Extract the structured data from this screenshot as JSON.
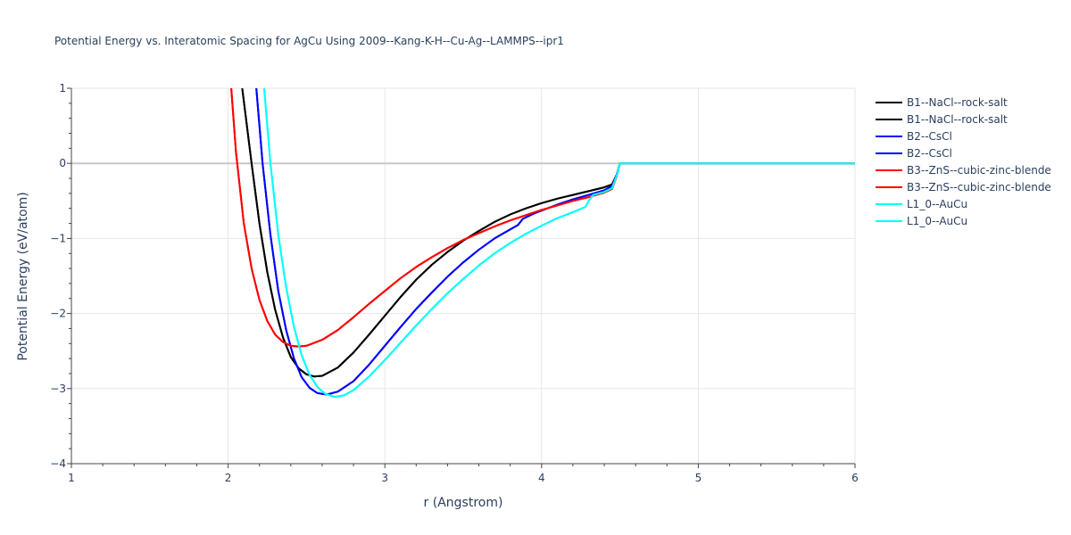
{
  "chart_data": {
    "type": "line",
    "title": "Potential Energy vs. Interatomic Spacing for AgCu Using 2009--Kang-K-H--Cu-Ag--LAMMPS--ipr1",
    "xlabel": "r (Angstrom)",
    "ylabel": "Potential Energy (eV/atom)",
    "xlim": [
      1,
      6
    ],
    "ylim": [
      -4,
      1
    ],
    "x_ticks": [
      "1",
      "2",
      "3",
      "4",
      "5",
      "6"
    ],
    "y_ticks": [
      "1",
      "0",
      "−1",
      "−2",
      "−3",
      "−4"
    ],
    "grid": true,
    "legend_position": "top-right",
    "series": [
      {
        "name": "B1--NaCl--rock-salt",
        "color": "#000000",
        "points": [
          [
            2.09,
            1.0
          ],
          [
            2.15,
            0.0
          ],
          [
            2.2,
            -0.8
          ],
          [
            2.25,
            -1.45
          ],
          [
            2.3,
            -1.95
          ],
          [
            2.35,
            -2.32
          ],
          [
            2.4,
            -2.58
          ],
          [
            2.45,
            -2.73
          ],
          [
            2.5,
            -2.81
          ],
          [
            2.55,
            -2.84
          ],
          [
            2.6,
            -2.83
          ],
          [
            2.7,
            -2.72
          ],
          [
            2.8,
            -2.52
          ],
          [
            2.9,
            -2.28
          ],
          [
            3.0,
            -2.03
          ],
          [
            3.1,
            -1.78
          ],
          [
            3.2,
            -1.55
          ],
          [
            3.3,
            -1.35
          ],
          [
            3.4,
            -1.18
          ],
          [
            3.5,
            -1.03
          ],
          [
            3.6,
            -0.9
          ],
          [
            3.7,
            -0.78
          ],
          [
            3.8,
            -0.68
          ],
          [
            3.9,
            -0.6
          ],
          [
            4.0,
            -0.53
          ],
          [
            4.1,
            -0.47
          ],
          [
            4.2,
            -0.42
          ],
          [
            4.3,
            -0.37
          ],
          [
            4.4,
            -0.32
          ],
          [
            4.45,
            -0.28
          ],
          [
            4.48,
            -0.15
          ],
          [
            4.5,
            0.0
          ],
          [
            6.0,
            0.0
          ]
        ]
      },
      {
        "name": "B1--NaCl--rock-salt",
        "color": "#000000",
        "points": [
          [
            2.09,
            1.0
          ],
          [
            2.15,
            0.0
          ],
          [
            2.2,
            -0.8
          ],
          [
            2.25,
            -1.45
          ],
          [
            2.3,
            -1.95
          ],
          [
            2.35,
            -2.32
          ],
          [
            2.4,
            -2.58
          ],
          [
            2.45,
            -2.73
          ],
          [
            2.5,
            -2.81
          ],
          [
            2.55,
            -2.84
          ],
          [
            2.6,
            -2.83
          ],
          [
            2.7,
            -2.72
          ],
          [
            2.8,
            -2.52
          ],
          [
            2.9,
            -2.28
          ],
          [
            3.0,
            -2.03
          ],
          [
            3.1,
            -1.78
          ],
          [
            3.2,
            -1.55
          ],
          [
            3.3,
            -1.35
          ],
          [
            3.4,
            -1.18
          ],
          [
            3.5,
            -1.03
          ],
          [
            3.6,
            -0.9
          ],
          [
            3.7,
            -0.78
          ],
          [
            3.8,
            -0.68
          ],
          [
            3.9,
            -0.6
          ],
          [
            4.0,
            -0.53
          ],
          [
            4.1,
            -0.47
          ],
          [
            4.2,
            -0.42
          ],
          [
            4.3,
            -0.37
          ],
          [
            4.4,
            -0.32
          ],
          [
            4.45,
            -0.28
          ],
          [
            4.48,
            -0.15
          ],
          [
            4.5,
            0.0
          ],
          [
            6.0,
            0.0
          ]
        ]
      },
      {
        "name": "B2--CsCl",
        "color": "#0000ff",
        "points": [
          [
            2.18,
            1.0
          ],
          [
            2.22,
            0.0
          ],
          [
            2.27,
            -0.95
          ],
          [
            2.32,
            -1.7
          ],
          [
            2.37,
            -2.22
          ],
          [
            2.42,
            -2.6
          ],
          [
            2.47,
            -2.85
          ],
          [
            2.52,
            -2.99
          ],
          [
            2.57,
            -3.06
          ],
          [
            2.63,
            -3.08
          ],
          [
            2.7,
            -3.04
          ],
          [
            2.8,
            -2.9
          ],
          [
            2.9,
            -2.68
          ],
          [
            3.0,
            -2.43
          ],
          [
            3.1,
            -2.18
          ],
          [
            3.2,
            -1.94
          ],
          [
            3.3,
            -1.72
          ],
          [
            3.4,
            -1.51
          ],
          [
            3.5,
            -1.32
          ],
          [
            3.6,
            -1.15
          ],
          [
            3.7,
            -1.0
          ],
          [
            3.8,
            -0.88
          ],
          [
            3.85,
            -0.82
          ],
          [
            3.88,
            -0.74
          ],
          [
            3.95,
            -0.67
          ],
          [
            4.0,
            -0.63
          ],
          [
            4.1,
            -0.55
          ],
          [
            4.2,
            -0.48
          ],
          [
            4.3,
            -0.42
          ],
          [
            4.4,
            -0.36
          ],
          [
            4.45,
            -0.3
          ],
          [
            4.48,
            -0.15
          ],
          [
            4.5,
            0.0
          ],
          [
            6.0,
            0.0
          ]
        ]
      },
      {
        "name": "B2--CsCl",
        "color": "#0000ff",
        "points": [
          [
            2.18,
            1.0
          ],
          [
            2.22,
            0.0
          ],
          [
            2.27,
            -0.95
          ],
          [
            2.32,
            -1.7
          ],
          [
            2.37,
            -2.22
          ],
          [
            2.42,
            -2.6
          ],
          [
            2.47,
            -2.85
          ],
          [
            2.52,
            -2.99
          ],
          [
            2.57,
            -3.06
          ],
          [
            2.63,
            -3.08
          ],
          [
            2.7,
            -3.04
          ],
          [
            2.8,
            -2.9
          ],
          [
            2.9,
            -2.68
          ],
          [
            3.0,
            -2.43
          ],
          [
            3.1,
            -2.18
          ],
          [
            3.2,
            -1.94
          ],
          [
            3.3,
            -1.72
          ],
          [
            3.4,
            -1.51
          ],
          [
            3.5,
            -1.32
          ],
          [
            3.6,
            -1.15
          ],
          [
            3.7,
            -1.0
          ],
          [
            3.8,
            -0.88
          ],
          [
            3.85,
            -0.82
          ],
          [
            3.88,
            -0.74
          ],
          [
            3.95,
            -0.67
          ],
          [
            4.0,
            -0.63
          ],
          [
            4.1,
            -0.55
          ],
          [
            4.2,
            -0.48
          ],
          [
            4.3,
            -0.42
          ],
          [
            4.4,
            -0.36
          ],
          [
            4.45,
            -0.3
          ],
          [
            4.48,
            -0.15
          ],
          [
            4.5,
            0.0
          ],
          [
            6.0,
            0.0
          ]
        ]
      },
      {
        "name": "B3--ZnS--cubic-zinc-blende",
        "color": "#ff0000",
        "points": [
          [
            2.02,
            1.0
          ],
          [
            2.05,
            0.15
          ],
          [
            2.1,
            -0.8
          ],
          [
            2.15,
            -1.4
          ],
          [
            2.2,
            -1.82
          ],
          [
            2.25,
            -2.1
          ],
          [
            2.3,
            -2.28
          ],
          [
            2.35,
            -2.38
          ],
          [
            2.4,
            -2.43
          ],
          [
            2.45,
            -2.44
          ],
          [
            2.5,
            -2.43
          ],
          [
            2.6,
            -2.35
          ],
          [
            2.7,
            -2.22
          ],
          [
            2.8,
            -2.05
          ],
          [
            2.9,
            -1.87
          ],
          [
            3.0,
            -1.7
          ],
          [
            3.1,
            -1.53
          ],
          [
            3.2,
            -1.38
          ],
          [
            3.3,
            -1.25
          ],
          [
            3.4,
            -1.13
          ],
          [
            3.5,
            -1.02
          ],
          [
            3.6,
            -0.93
          ],
          [
            3.7,
            -0.84
          ],
          [
            3.8,
            -0.76
          ],
          [
            3.9,
            -0.69
          ],
          [
            4.0,
            -0.62
          ],
          [
            4.1,
            -0.56
          ],
          [
            4.2,
            -0.5
          ],
          [
            4.3,
            -0.45
          ],
          [
            4.4,
            -0.39
          ],
          [
            4.45,
            -0.34
          ],
          [
            4.48,
            -0.17
          ],
          [
            4.5,
            0.0
          ],
          [
            6.0,
            0.0
          ]
        ]
      },
      {
        "name": "B3--ZnS--cubic-zinc-blende",
        "color": "#ff0000",
        "points": [
          [
            2.02,
            1.0
          ],
          [
            2.05,
            0.15
          ],
          [
            2.1,
            -0.8
          ],
          [
            2.15,
            -1.4
          ],
          [
            2.2,
            -1.82
          ],
          [
            2.25,
            -2.1
          ],
          [
            2.3,
            -2.28
          ],
          [
            2.35,
            -2.38
          ],
          [
            2.4,
            -2.43
          ],
          [
            2.45,
            -2.44
          ],
          [
            2.5,
            -2.43
          ],
          [
            2.6,
            -2.35
          ],
          [
            2.7,
            -2.22
          ],
          [
            2.8,
            -2.05
          ],
          [
            2.9,
            -1.87
          ],
          [
            3.0,
            -1.7
          ],
          [
            3.1,
            -1.53
          ],
          [
            3.2,
            -1.38
          ],
          [
            3.3,
            -1.25
          ],
          [
            3.4,
            -1.13
          ],
          [
            3.5,
            -1.02
          ],
          [
            3.6,
            -0.93
          ],
          [
            3.7,
            -0.84
          ],
          [
            3.8,
            -0.76
          ],
          [
            3.9,
            -0.69
          ],
          [
            4.0,
            -0.62
          ],
          [
            4.1,
            -0.56
          ],
          [
            4.2,
            -0.5
          ],
          [
            4.3,
            -0.45
          ],
          [
            4.4,
            -0.39
          ],
          [
            4.45,
            -0.34
          ],
          [
            4.48,
            -0.17
          ],
          [
            4.5,
            0.0
          ],
          [
            6.0,
            0.0
          ]
        ]
      },
      {
        "name": "L1_0--AuCu",
        "color": "#00ffff",
        "points": [
          [
            2.23,
            1.0
          ],
          [
            2.27,
            0.0
          ],
          [
            2.32,
            -0.95
          ],
          [
            2.37,
            -1.65
          ],
          [
            2.42,
            -2.18
          ],
          [
            2.47,
            -2.56
          ],
          [
            2.52,
            -2.82
          ],
          [
            2.57,
            -2.98
          ],
          [
            2.62,
            -3.07
          ],
          [
            2.68,
            -3.11
          ],
          [
            2.74,
            -3.09
          ],
          [
            2.8,
            -3.02
          ],
          [
            2.9,
            -2.84
          ],
          [
            3.0,
            -2.62
          ],
          [
            3.1,
            -2.39
          ],
          [
            3.2,
            -2.16
          ],
          [
            3.3,
            -1.94
          ],
          [
            3.4,
            -1.73
          ],
          [
            3.5,
            -1.54
          ],
          [
            3.6,
            -1.36
          ],
          [
            3.7,
            -1.2
          ],
          [
            3.8,
            -1.06
          ],
          [
            3.9,
            -0.94
          ],
          [
            4.0,
            -0.83
          ],
          [
            4.1,
            -0.73
          ],
          [
            4.2,
            -0.65
          ],
          [
            4.28,
            -0.58
          ],
          [
            4.3,
            -0.5
          ],
          [
            4.33,
            -0.42
          ],
          [
            4.4,
            -0.38
          ],
          [
            4.45,
            -0.33
          ],
          [
            4.48,
            -0.16
          ],
          [
            4.5,
            0.0
          ],
          [
            6.0,
            0.0
          ]
        ]
      },
      {
        "name": "L1_0--AuCu",
        "color": "#00ffff",
        "points": [
          [
            2.23,
            1.0
          ],
          [
            2.27,
            0.0
          ],
          [
            2.32,
            -0.95
          ],
          [
            2.37,
            -1.65
          ],
          [
            2.42,
            -2.18
          ],
          [
            2.47,
            -2.56
          ],
          [
            2.52,
            -2.82
          ],
          [
            2.57,
            -2.98
          ],
          [
            2.62,
            -3.07
          ],
          [
            2.68,
            -3.11
          ],
          [
            2.74,
            -3.09
          ],
          [
            2.8,
            -3.02
          ],
          [
            2.9,
            -2.84
          ],
          [
            3.0,
            -2.62
          ],
          [
            3.1,
            -2.39
          ],
          [
            3.2,
            -2.16
          ],
          [
            3.3,
            -1.94
          ],
          [
            3.4,
            -1.73
          ],
          [
            3.5,
            -1.54
          ],
          [
            3.6,
            -1.36
          ],
          [
            3.7,
            -1.2
          ],
          [
            3.8,
            -1.06
          ],
          [
            3.9,
            -0.94
          ],
          [
            4.0,
            -0.83
          ],
          [
            4.1,
            -0.73
          ],
          [
            4.2,
            -0.65
          ],
          [
            4.28,
            -0.58
          ],
          [
            4.3,
            -0.5
          ],
          [
            4.33,
            -0.42
          ],
          [
            4.4,
            -0.38
          ],
          [
            4.45,
            -0.33
          ],
          [
            4.48,
            -0.16
          ],
          [
            4.5,
            0.0
          ],
          [
            6.0,
            0.0
          ]
        ]
      }
    ]
  }
}
